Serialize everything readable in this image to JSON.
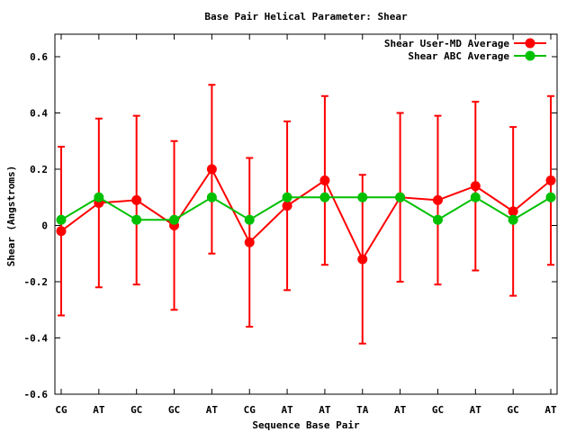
{
  "chart_data": {
    "type": "line",
    "title": "Base Pair Helical Parameter: Shear",
    "xlabel": "Sequence Base Pair",
    "ylabel": "Shear (Angstroms)",
    "ylim": [
      -0.6,
      0.68
    ],
    "yticks": [
      -0.6,
      -0.4,
      -0.2,
      0,
      0.2,
      0.4,
      0.6
    ],
    "ytick_labels": [
      "-0.6",
      "-0.4",
      "-0.2",
      "0",
      "0.2",
      "0.4",
      "0.6"
    ],
    "categories": [
      "CG",
      "AT",
      "GC",
      "GC",
      "AT",
      "CG",
      "AT",
      "AT",
      "TA",
      "AT",
      "GC",
      "AT",
      "GC",
      "AT"
    ],
    "grid": false,
    "legend_position": "top-right",
    "series": [
      {
        "name": "Shear User-MD Average",
        "color": "#ff0000",
        "values": [
          -0.02,
          0.08,
          0.09,
          0.0,
          0.2,
          -0.06,
          0.07,
          0.16,
          -0.12,
          0.1,
          0.09,
          0.14,
          0.05,
          0.16
        ],
        "errors": [
          0.3,
          0.3,
          0.3,
          0.3,
          0.3,
          0.3,
          0.3,
          0.3,
          0.3,
          0.3,
          0.3,
          0.3,
          0.3,
          0.3
        ]
      },
      {
        "name": "Shear ABC Average",
        "color": "#00c000",
        "values": [
          0.02,
          0.1,
          0.02,
          0.02,
          0.1,
          0.02,
          0.1,
          0.1,
          0.1,
          0.1,
          0.02,
          0.1,
          0.02,
          0.1
        ]
      }
    ]
  }
}
